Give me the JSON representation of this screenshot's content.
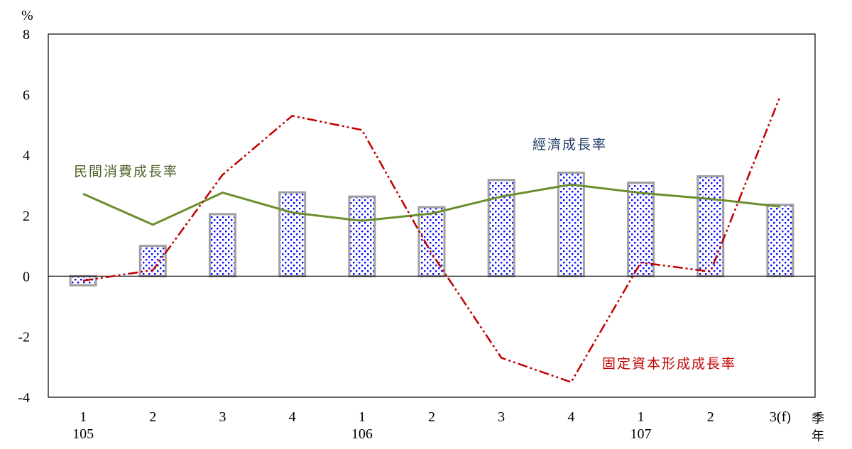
{
  "chart_data": {
    "type": "bar",
    "title": "",
    "unit_label": "%",
    "quarter_axis_label": "季",
    "year_axis_label": "年",
    "categories": [
      "1",
      "2",
      "3",
      "4",
      "1",
      "2",
      "3",
      "4",
      "1",
      "2",
      "3(f)"
    ],
    "year_labels": [
      {
        "label": "105",
        "category_index": 0
      },
      {
        "label": "106",
        "category_index": 4
      },
      {
        "label": "107",
        "category_index": 8
      }
    ],
    "yticks": [
      "8",
      "6",
      "4",
      "2",
      "0",
      "-2",
      "-4"
    ],
    "ylim": [
      -4,
      8
    ],
    "grid": false,
    "series": [
      {
        "name": "經濟成長率",
        "kind": "bar",
        "color": "#0000ff",
        "border_color": "#a0a0a0",
        "values": [
          -0.3,
          1.0,
          2.05,
          2.77,
          2.63,
          2.28,
          3.18,
          3.42,
          3.09,
          3.3,
          2.36
        ]
      },
      {
        "name": "民間消費成長率",
        "kind": "line",
        "color": "#6b8e2f",
        "values": [
          2.72,
          1.7,
          2.76,
          2.1,
          1.83,
          2.07,
          2.63,
          3.03,
          2.75,
          2.55,
          2.3
        ]
      },
      {
        "name": "固定資本形成成長率",
        "kind": "line-dash-dot-dot",
        "color": "#c00000",
        "values": [
          -0.15,
          0.2,
          3.35,
          5.3,
          4.83,
          0.75,
          -2.7,
          -3.5,
          0.45,
          0.15,
          5.95
        ]
      }
    ]
  }
}
